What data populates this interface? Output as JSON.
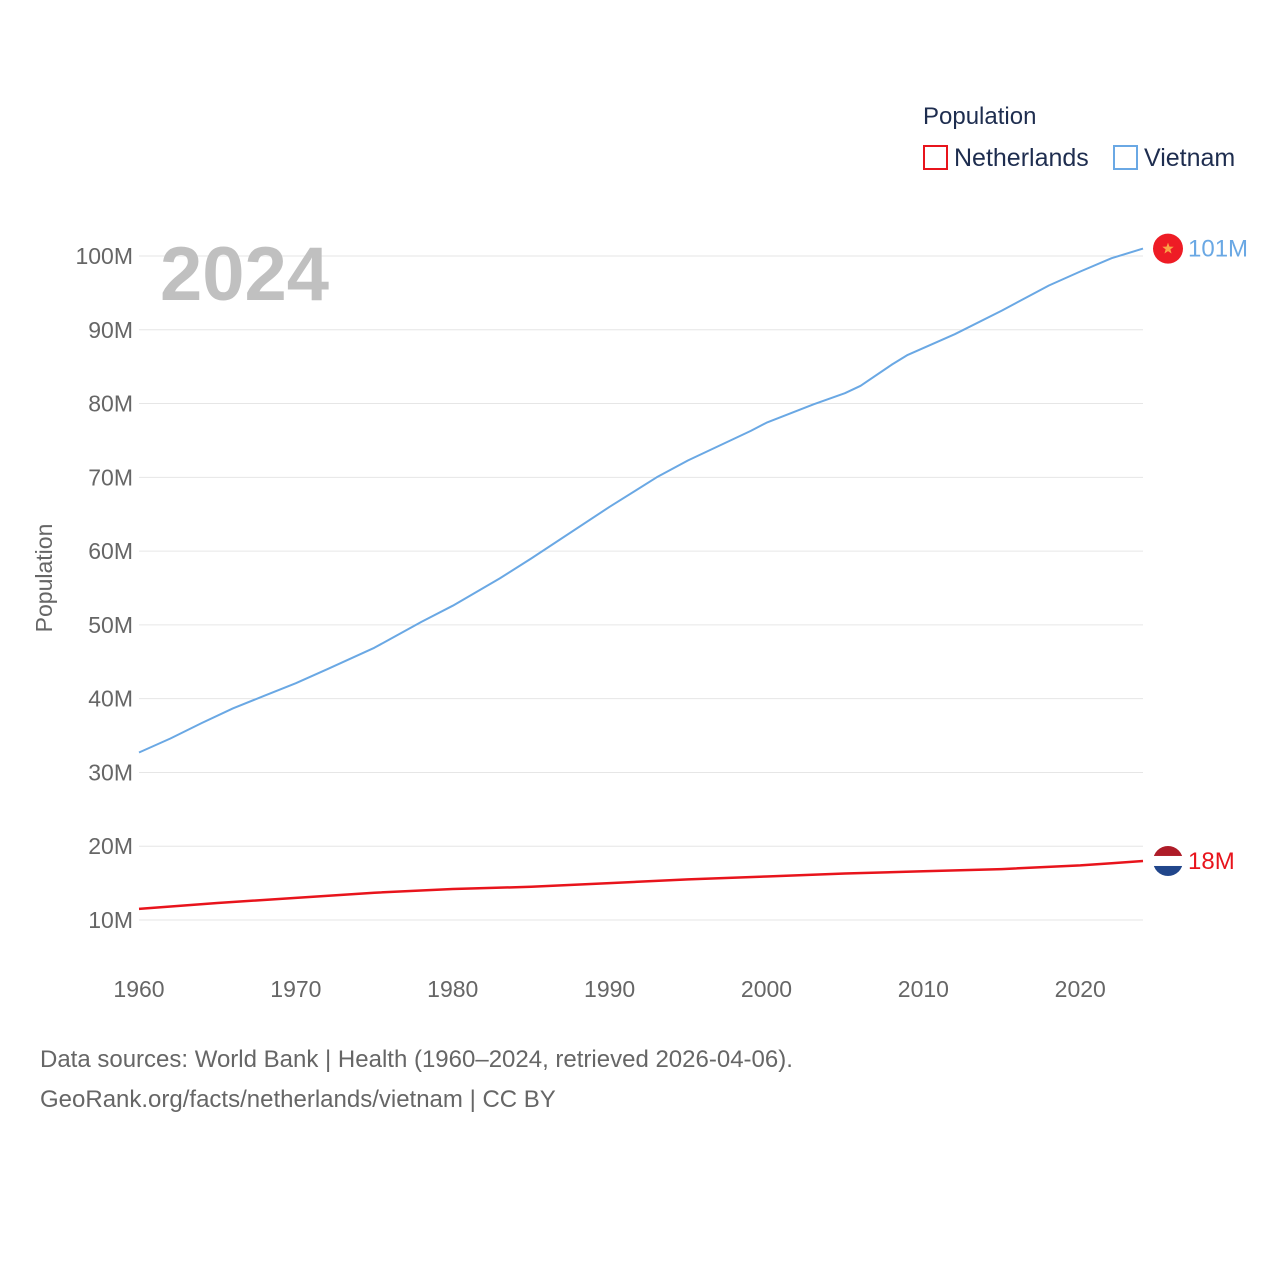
{
  "chart_data": {
    "type": "line",
    "title": "Population",
    "year_label": "2024",
    "ylabel": "Population",
    "xlim": [
      1960,
      2024
    ],
    "ylim": [
      5000000,
      105000000
    ],
    "x_ticks": [
      1960,
      1970,
      1980,
      1990,
      2000,
      2010,
      2020
    ],
    "y_ticks": [
      {
        "value": 10000000,
        "label": "10M"
      },
      {
        "value": 20000000,
        "label": "20M"
      },
      {
        "value": 30000000,
        "label": "30M"
      },
      {
        "value": 40000000,
        "label": "40M"
      },
      {
        "value": 50000000,
        "label": "50M"
      },
      {
        "value": 60000000,
        "label": "60M"
      },
      {
        "value": 70000000,
        "label": "70M"
      },
      {
        "value": 80000000,
        "label": "80M"
      },
      {
        "value": 90000000,
        "label": "90M"
      },
      {
        "value": 100000000,
        "label": "100M"
      }
    ],
    "legend": {
      "title": "Population",
      "position": "top-right"
    },
    "series": [
      {
        "name": "Netherlands",
        "color": "#e8141c",
        "end_label": "18M",
        "flag": "netherlands-flag-icon",
        "points": [
          [
            1960,
            11.5
          ],
          [
            1965,
            12.3
          ],
          [
            1970,
            13.0
          ],
          [
            1975,
            13.7
          ],
          [
            1980,
            14.2
          ],
          [
            1985,
            14.5
          ],
          [
            1990,
            15.0
          ],
          [
            1995,
            15.5
          ],
          [
            2000,
            15.9
          ],
          [
            2005,
            16.3
          ],
          [
            2010,
            16.6
          ],
          [
            2015,
            16.9
          ],
          [
            2020,
            17.4
          ],
          [
            2022,
            17.7
          ],
          [
            2024,
            18.0
          ]
        ]
      },
      {
        "name": "Vietnam",
        "color": "#6aa8e4",
        "end_label": "101M",
        "flag": "vietnam-flag-icon",
        "points": [
          [
            1960,
            32.7
          ],
          [
            1962,
            34.6
          ],
          [
            1964,
            36.7
          ],
          [
            1966,
            38.7
          ],
          [
            1968,
            40.4
          ],
          [
            1970,
            42.1
          ],
          [
            1972,
            44.0
          ],
          [
            1975,
            46.9
          ],
          [
            1978,
            50.4
          ],
          [
            1980,
            52.6
          ],
          [
            1983,
            56.3
          ],
          [
            1985,
            59.0
          ],
          [
            1990,
            66.0
          ],
          [
            1993,
            70.0
          ],
          [
            1995,
            72.3
          ],
          [
            1999,
            76.3
          ],
          [
            2000,
            77.4
          ],
          [
            2003,
            79.9
          ],
          [
            2005,
            81.4
          ],
          [
            2006,
            82.4
          ],
          [
            2008,
            85.3
          ],
          [
            2009,
            86.6
          ],
          [
            2012,
            89.4
          ],
          [
            2015,
            92.6
          ],
          [
            2018,
            96.0
          ],
          [
            2020,
            97.9
          ],
          [
            2022,
            99.7
          ],
          [
            2024,
            101.0
          ]
        ]
      }
    ]
  },
  "footer": {
    "source_line": "Data sources: World Bank | Health (1960–2024, retrieved 2026-04-06).",
    "url_line": "GeoRank.org/facts/netherlands/vietnam | CC BY"
  }
}
